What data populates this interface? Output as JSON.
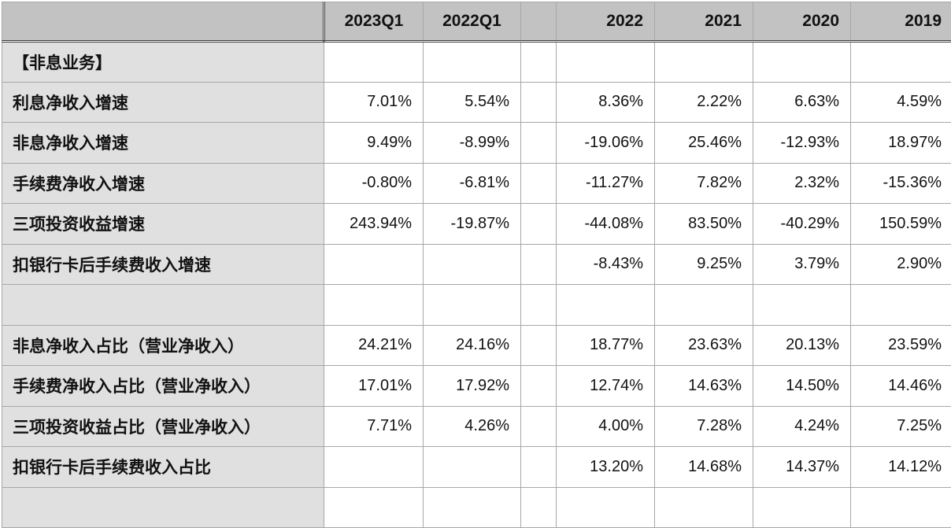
{
  "colors": {
    "header_bg": "#c2c2c2",
    "label_bg": "#e0e0e0",
    "grid": "#a7a7a7",
    "divider": "#3a3a3a"
  },
  "table": {
    "header": {
      "label": "",
      "cols": [
        "2023Q1",
        "2022Q1",
        "",
        "2022",
        "2021",
        "2020",
        "2019"
      ]
    },
    "rows": [
      {
        "label": "【非息业务】",
        "values": [
          "",
          "",
          "",
          "",
          "",
          "",
          ""
        ]
      },
      {
        "label": "利息净收入增速",
        "values": [
          "7.01%",
          "5.54%",
          "",
          "8.36%",
          "2.22%",
          "6.63%",
          "4.59%"
        ]
      },
      {
        "label": "非息净收入增速",
        "values": [
          "9.49%",
          "-8.99%",
          "",
          "-19.06%",
          "25.46%",
          "-12.93%",
          "18.97%"
        ]
      },
      {
        "label": "手续费净收入增速",
        "values": [
          "-0.80%",
          "-6.81%",
          "",
          "-11.27%",
          "7.82%",
          "2.32%",
          "-15.36%"
        ]
      },
      {
        "label": "三项投资收益增速",
        "values": [
          "243.94%",
          "-19.87%",
          "",
          "-44.08%",
          "83.50%",
          "-40.29%",
          "150.59%"
        ]
      },
      {
        "label": "扣银行卡后手续费收入增速",
        "values": [
          "",
          "",
          "",
          "-8.43%",
          "9.25%",
          "3.79%",
          "2.90%"
        ]
      },
      {
        "label": "",
        "values": [
          "",
          "",
          "",
          "",
          "",
          "",
          ""
        ]
      },
      {
        "label": "非息净收入占比（营业净收入）",
        "values": [
          "24.21%",
          "24.16%",
          "",
          "18.77%",
          "23.63%",
          "20.13%",
          "23.59%"
        ]
      },
      {
        "label": "手续费净收入占比（营业净收入）",
        "values": [
          "17.01%",
          "17.92%",
          "",
          "12.74%",
          "14.63%",
          "14.50%",
          "14.46%"
        ]
      },
      {
        "label": "三项投资收益占比（营业净收入）",
        "values": [
          "7.71%",
          "4.26%",
          "",
          "4.00%",
          "7.28%",
          "4.24%",
          "7.25%"
        ]
      },
      {
        "label": "扣银行卡后手续费收入占比",
        "values": [
          "",
          "",
          "",
          "13.20%",
          "14.68%",
          "14.37%",
          "14.12%"
        ]
      },
      {
        "label": "",
        "values": [
          "",
          "",
          "",
          "",
          "",
          "",
          ""
        ]
      }
    ]
  }
}
